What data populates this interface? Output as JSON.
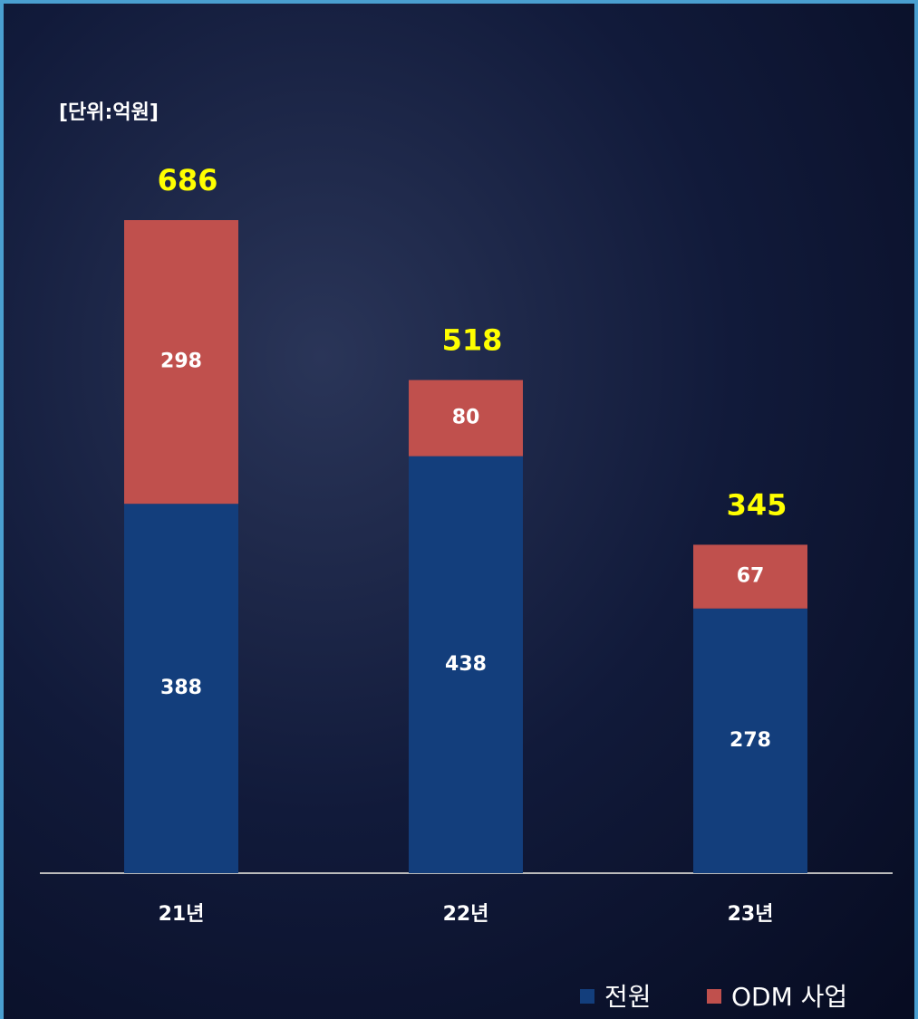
{
  "chart_data": {
    "type": "stacked_bar",
    "unit_label": "[단위:억원]",
    "categories": [
      "21년",
      "22년",
      "23년"
    ],
    "series": [
      {
        "name": "전원",
        "color": "#133e7c",
        "values": [
          388,
          438,
          278
        ]
      },
      {
        "name": "ODM 사업",
        "color": "#c0504d",
        "values": [
          298,
          80,
          67
        ]
      }
    ],
    "totals": [
      686,
      518,
      345
    ],
    "totals_color": "#ffff00"
  }
}
